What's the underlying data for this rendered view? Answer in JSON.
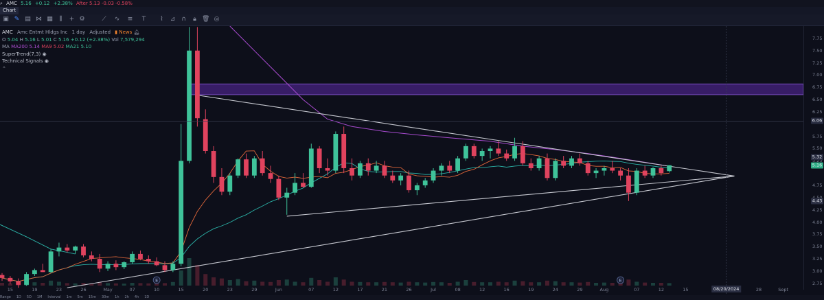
{
  "topbar": {
    "symbol": "AMC",
    "last": "5.16",
    "change": "+0.12",
    "change_pct": "+2.38%",
    "after": "After 5.13 -0.03 -0.58%"
  },
  "tabs": [
    {
      "label": "Chart"
    }
  ],
  "legend": {
    "symbol": "AMC",
    "name": "Amc Entmt Hldgs Inc",
    "interval": "1 day",
    "adjusted": "Adjusted",
    "news": "News",
    "ohlc": {
      "o_label": "O",
      "o": "5.04",
      "h_label": "H",
      "h": "5.16",
      "l_label": "L",
      "l": "5.01",
      "c_label": "C",
      "c": "5.16",
      "chg": "+0.12 (+2.38%)",
      "vol_label": "Vol",
      "vol": "7,579,294"
    },
    "ma": {
      "label": "MA",
      "ma200": "MA200 5.14",
      "ma9": "MA9 5.02",
      "ma21": "MA21 5.10"
    },
    "indicators": [
      "SuperTrend(7,3)",
      "Technical Signals"
    ]
  },
  "y_axis": {
    "ticks": [
      "7.75",
      "7.50",
      "7.25",
      "7.00",
      "6.75",
      "6.50",
      "6.25",
      "5.75",
      "5.50",
      "5.25",
      "4.75",
      "4.50",
      "4.25",
      "4.00",
      "3.75",
      "3.50",
      "3.25",
      "3.00",
      "2.75"
    ],
    "badges": [
      {
        "label": "6.06",
        "value": 6.06,
        "color": "#2a2e42"
      },
      {
        "label": "5.32",
        "value": 5.32,
        "color": "#2a2e42"
      },
      {
        "label": "5.16",
        "value": 5.16,
        "color": "#2fae86"
      },
      {
        "label": "4.43",
        "value": 4.43,
        "color": "#2a2e42"
      }
    ]
  },
  "x_axis": {
    "ticks": [
      {
        "label": "15",
        "i": 1
      },
      {
        "label": "19",
        "i": 4
      },
      {
        "label": "23",
        "i": 7
      },
      {
        "label": "26",
        "i": 10
      },
      {
        "label": "May",
        "i": 13
      },
      {
        "label": "07",
        "i": 16
      },
      {
        "label": "10",
        "i": 19
      },
      {
        "label": "15",
        "i": 22
      },
      {
        "label": "20",
        "i": 25
      },
      {
        "label": "23",
        "i": 28
      },
      {
        "label": "29",
        "i": 31
      },
      {
        "label": "Jun",
        "i": 34
      },
      {
        "label": "07",
        "i": 38
      },
      {
        "label": "12",
        "i": 41
      },
      {
        "label": "17",
        "i": 44
      },
      {
        "label": "21",
        "i": 47
      },
      {
        "label": "26",
        "i": 50
      },
      {
        "label": "Jul",
        "i": 53
      },
      {
        "label": "08",
        "i": 56
      },
      {
        "label": "12",
        "i": 59
      },
      {
        "label": "16",
        "i": 62
      },
      {
        "label": "19",
        "i": 65
      },
      {
        "label": "24",
        "i": 68
      },
      {
        "label": "29",
        "i": 71
      },
      {
        "label": "Aug",
        "i": 74
      },
      {
        "label": "07",
        "i": 78
      },
      {
        "label": "12",
        "i": 81
      },
      {
        "label": "15",
        "i": 84
      },
      {
        "label": "23",
        "i": 90
      },
      {
        "label": "28",
        "i": 93
      },
      {
        "label": "Sept",
        "i": 96
      }
    ],
    "date_badge": {
      "label": "08/20/2024",
      "i": 89
    }
  },
  "bottombar": [
    "Range",
    "1D",
    "5D",
    "1M",
    "Interval",
    "1m",
    "5m",
    "15m",
    "30m",
    "1h",
    "2h",
    "4h",
    "1D"
  ],
  "chart_data": {
    "type": "candlestick",
    "ylim": [
      2.62,
      8.0
    ],
    "colors": {
      "up": "#3fc39a",
      "down": "#e0435e",
      "ma200": "#a84bd0",
      "ma9": "#e0673a",
      "ma21": "#2bb3a8",
      "zone": "#5b2aa6",
      "trendline": "#c8cad2"
    },
    "candles": [
      [
        2.92,
        2.96,
        2.8,
        2.86
      ],
      [
        2.86,
        2.9,
        2.74,
        2.79
      ],
      [
        2.79,
        2.85,
        2.66,
        2.72
      ],
      [
        2.72,
        2.98,
        2.7,
        2.94
      ],
      [
        2.94,
        3.05,
        2.9,
        3.02
      ],
      [
        3.02,
        3.15,
        2.98,
        2.98
      ],
      [
        2.98,
        3.45,
        2.96,
        3.4
      ],
      [
        3.4,
        3.58,
        3.3,
        3.48
      ],
      [
        3.48,
        3.55,
        3.38,
        3.42
      ],
      [
        3.42,
        3.52,
        3.35,
        3.5
      ],
      [
        3.5,
        3.55,
        3.28,
        3.32
      ],
      [
        3.32,
        3.4,
        3.2,
        3.25
      ],
      [
        3.25,
        3.35,
        2.98,
        3.05
      ],
      [
        3.05,
        3.2,
        3.0,
        3.15
      ],
      [
        3.15,
        3.22,
        3.02,
        3.08
      ],
      [
        3.08,
        3.2,
        3.04,
        3.18
      ],
      [
        3.18,
        3.4,
        3.15,
        3.35
      ],
      [
        3.35,
        3.42,
        3.22,
        3.25
      ],
      [
        3.25,
        3.32,
        3.15,
        3.2
      ],
      [
        3.2,
        3.28,
        3.1,
        3.12
      ],
      [
        3.12,
        3.2,
        2.98,
        3.02
      ],
      [
        3.02,
        3.2,
        2.98,
        3.15
      ],
      [
        3.15,
        6.0,
        3.1,
        5.25
      ],
      [
        5.25,
        7.98,
        5.2,
        7.5
      ],
      [
        7.5,
        7.98,
        5.95,
        6.12
      ],
      [
        6.1,
        6.3,
        5.4,
        5.45
      ],
      [
        5.45,
        5.55,
        4.8,
        4.92
      ],
      [
        4.92,
        5.1,
        4.55,
        4.62
      ],
      [
        4.62,
        5.0,
        4.55,
        4.95
      ],
      [
        4.95,
        5.3,
        4.9,
        5.28
      ],
      [
        5.28,
        5.4,
        4.9,
        4.95
      ],
      [
        4.95,
        5.35,
        4.9,
        5.3
      ],
      [
        5.3,
        5.45,
        4.95,
        5.0
      ],
      [
        5.0,
        5.15,
        4.8,
        4.88
      ],
      [
        4.88,
        4.95,
        4.45,
        4.5
      ],
      [
        4.5,
        4.7,
        4.15,
        4.6
      ],
      [
        4.6,
        5.0,
        4.55,
        4.8
      ],
      [
        4.8,
        5.0,
        4.7,
        4.72
      ],
      [
        4.72,
        5.6,
        4.7,
        5.5
      ],
      [
        5.5,
        5.55,
        5.0,
        5.1
      ],
      [
        5.1,
        5.3,
        4.95,
        5.05
      ],
      [
        5.05,
        5.85,
        5.0,
        5.8
      ],
      [
        5.8,
        5.95,
        5.0,
        5.1
      ],
      [
        5.1,
        5.3,
        4.85,
        4.95
      ],
      [
        4.95,
        5.25,
        4.9,
        5.2
      ],
      [
        5.2,
        5.3,
        4.95,
        5.05
      ],
      [
        5.05,
        5.25,
        5.0,
        5.15
      ],
      [
        5.15,
        5.25,
        4.9,
        4.95
      ],
      [
        4.95,
        5.05,
        4.8,
        4.85
      ],
      [
        4.85,
        5.0,
        4.75,
        4.95
      ],
      [
        4.95,
        5.05,
        4.6,
        4.65
      ],
      [
        4.65,
        4.8,
        4.55,
        4.75
      ],
      [
        4.75,
        4.9,
        4.7,
        4.85
      ],
      [
        4.85,
        5.1,
        4.8,
        5.05
      ],
      [
        5.05,
        5.2,
        4.95,
        5.15
      ],
      [
        5.15,
        5.25,
        5.0,
        5.05
      ],
      [
        5.05,
        5.35,
        5.0,
        5.3
      ],
      [
        5.3,
        5.6,
        5.25,
        5.55
      ],
      [
        5.55,
        5.6,
        5.3,
        5.35
      ],
      [
        5.35,
        5.5,
        5.25,
        5.45
      ],
      [
        5.45,
        5.55,
        5.3,
        5.5
      ],
      [
        5.5,
        5.65,
        5.35,
        5.4
      ],
      [
        5.4,
        5.48,
        5.25,
        5.3
      ],
      [
        5.3,
        5.72,
        5.25,
        5.55
      ],
      [
        5.55,
        5.65,
        5.15,
        5.2
      ],
      [
        5.2,
        5.3,
        5.05,
        5.1
      ],
      [
        5.1,
        5.35,
        5.05,
        5.3
      ],
      [
        5.3,
        5.4,
        4.85,
        4.9
      ],
      [
        4.9,
        5.3,
        4.85,
        5.25
      ],
      [
        5.25,
        5.35,
        5.1,
        5.15
      ],
      [
        5.15,
        5.35,
        5.1,
        5.3
      ],
      [
        5.3,
        5.4,
        5.15,
        5.2
      ],
      [
        5.2,
        5.25,
        4.95,
        5.0
      ],
      [
        5.0,
        5.1,
        4.9,
        5.05
      ],
      [
        5.05,
        5.15,
        4.95,
        5.1
      ],
      [
        5.1,
        5.25,
        5.0,
        5.05
      ],
      [
        5.05,
        5.1,
        4.85,
        4.95
      ],
      [
        4.95,
        5.1,
        4.43,
        4.6
      ],
      [
        4.6,
        5.1,
        4.55,
        5.05
      ],
      [
        5.05,
        5.15,
        4.9,
        4.95
      ],
      [
        4.95,
        5.12,
        4.9,
        5.1
      ],
      [
        5.1,
        5.15,
        4.95,
        5.0
      ],
      [
        5.04,
        5.16,
        5.01,
        5.16
      ]
    ],
    "ma200": [
      [
        8.0,
        28
      ],
      [
        7.5,
        31
      ],
      [
        7.0,
        34
      ],
      [
        6.5,
        37
      ],
      [
        6.1,
        40
      ],
      [
        5.95,
        43
      ],
      [
        5.85,
        47
      ],
      [
        5.78,
        51
      ],
      [
        5.72,
        55
      ],
      [
        5.65,
        60
      ],
      [
        5.55,
        64
      ],
      [
        5.48,
        68
      ],
      [
        5.4,
        72
      ],
      [
        5.3,
        76
      ],
      [
        5.22,
        79
      ],
      [
        5.14,
        82
      ]
    ],
    "ma9_note": "",
    "volumes": [
      0.1,
      0.08,
      0.09,
      0.11,
      0.12,
      0.1,
      0.18,
      0.14,
      0.09,
      0.08,
      0.1,
      0.08,
      0.12,
      0.09,
      0.08,
      0.07,
      0.1,
      0.09,
      0.08,
      0.07,
      0.09,
      0.13,
      0.55,
      1.0,
      0.75,
      0.42,
      0.3,
      0.26,
      0.2,
      0.24,
      0.16,
      0.18,
      0.14,
      0.13,
      0.2,
      0.22,
      0.14,
      0.12,
      0.28,
      0.2,
      0.14,
      0.3,
      0.22,
      0.14,
      0.13,
      0.12,
      0.12,
      0.13,
      0.12,
      0.11,
      0.14,
      0.12,
      0.11,
      0.13,
      0.12,
      0.1,
      0.14,
      0.2,
      0.13,
      0.12,
      0.12,
      0.14,
      0.12,
      0.18,
      0.16,
      0.12,
      0.12,
      0.18,
      0.16,
      0.12,
      0.12,
      0.11,
      0.13,
      0.1,
      0.11,
      0.1,
      0.12,
      0.22,
      0.14,
      0.11,
      0.1,
      0.1,
      0.09
    ],
    "zone": {
      "top": 6.82,
      "bottom": 6.6,
      "from_i": 23
    },
    "hline": 6.06,
    "trendlines": [
      {
        "x1": 24,
        "y1": 6.59,
        "x2": 90,
        "y2": 4.94
      },
      {
        "x1": 35,
        "y1": 4.12,
        "x2": 90,
        "y2": 4.94
      },
      {
        "x1": 8,
        "y1": 2.66,
        "x2": 90,
        "y2": 4.94
      }
    ]
  }
}
